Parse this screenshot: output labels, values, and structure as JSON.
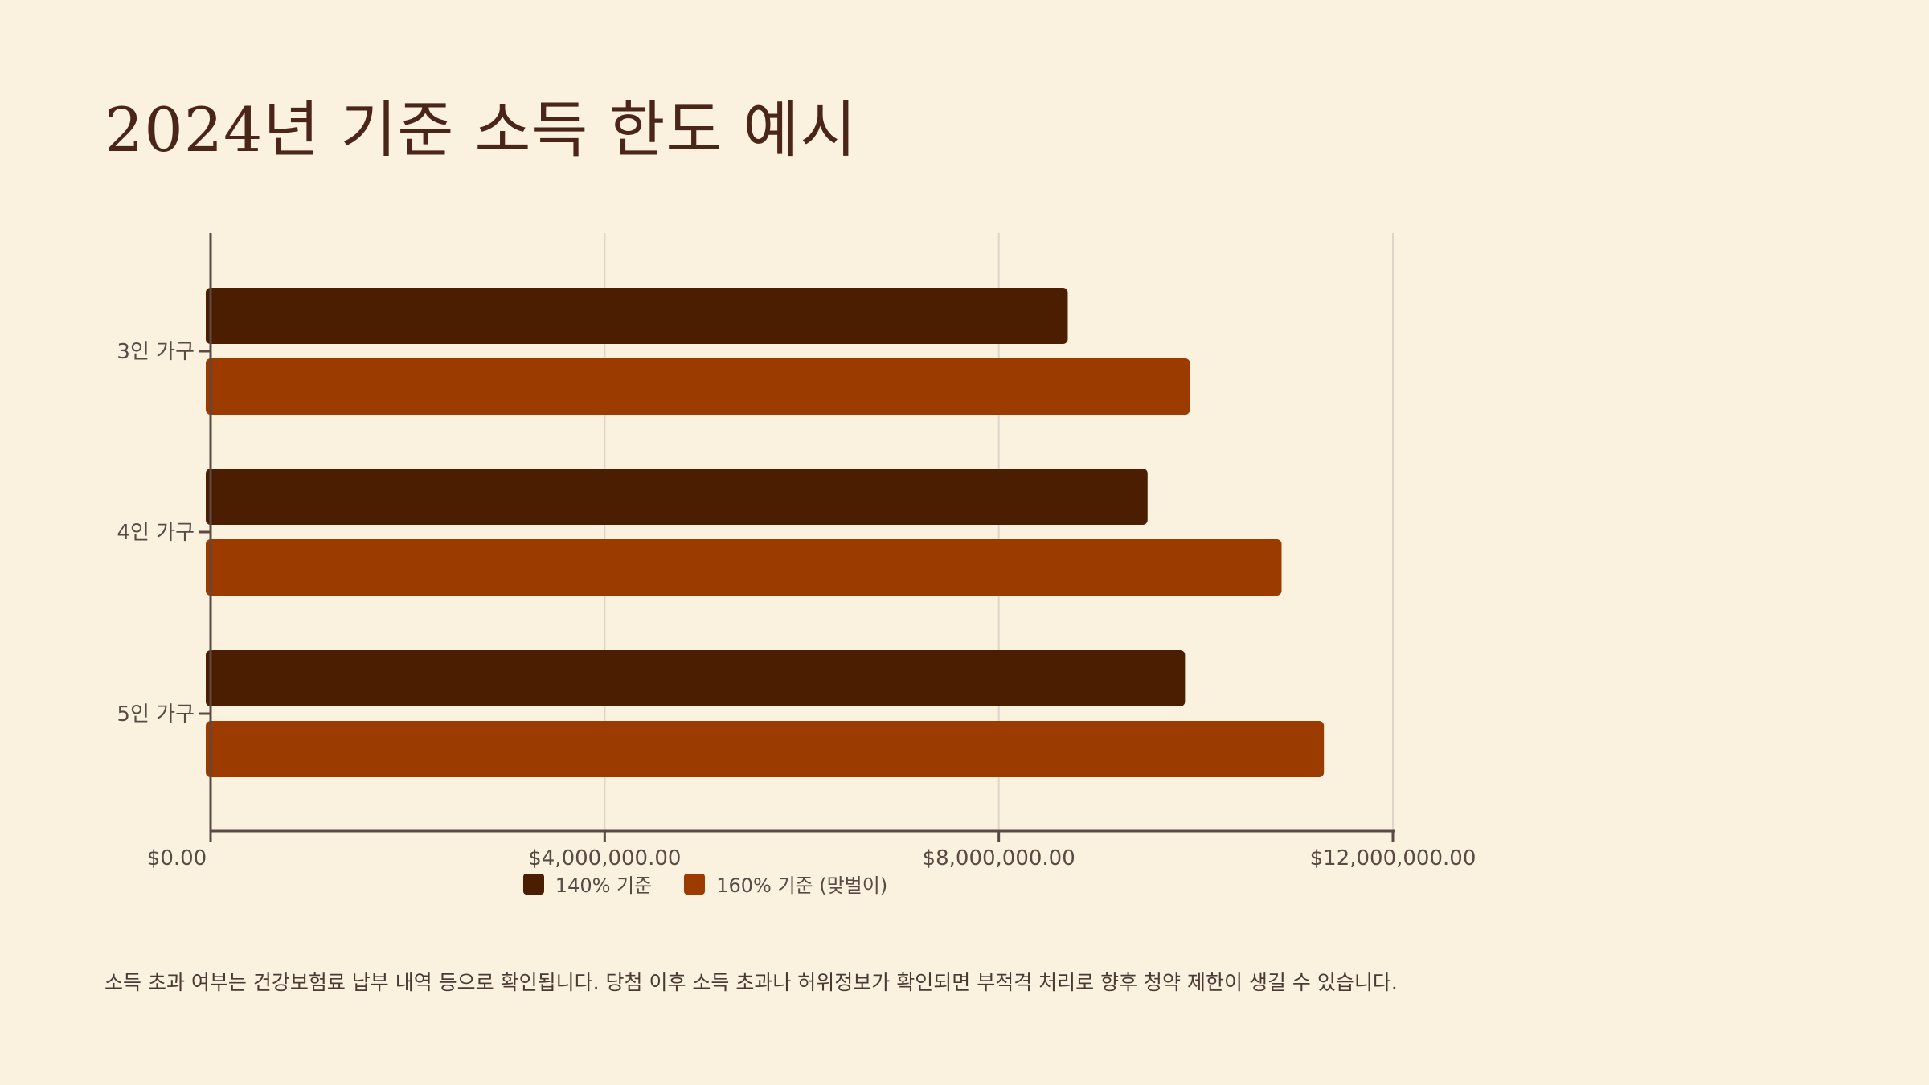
{
  "title": "2024년 기준 소득 한도 예시",
  "note": "소득 초과 여부는 건강보험료 납부 내역 등으로 확인됩니다. 당첨 이후 소득 초과나 허위정보가 확인되면 부적격 처리로 향후 청약 제한이 생길 수 있습니다.",
  "colors": {
    "background": "#FAF1DF",
    "series_140": "#4B1E02",
    "series_160": "#9C3B00",
    "axis": "#5A4A44",
    "grid": "#DDD5C8"
  },
  "chart_data": {
    "type": "bar",
    "orientation": "horizontal",
    "title": "2024년 기준 소득 한도 예시",
    "categories": [
      "3인 가구",
      "4인 가구",
      "5인 가구"
    ],
    "series": [
      {
        "name": "140% 기준",
        "values": [
          8700000,
          9510000,
          9890000
        ],
        "color": "#4B1E02"
      },
      {
        "name": "160% 기준 (맞벌이)",
        "values": [
          9940000,
          10870000,
          11300000
        ],
        "color": "#9C3B00"
      }
    ],
    "xlim": [
      0,
      12000000
    ],
    "xticks": [
      0,
      4000000,
      8000000,
      12000000
    ],
    "xtick_labels": [
      "$0.00",
      "$4,000,000.00",
      "$8,000,000.00",
      "$12,000,000.00"
    ],
    "grid": true,
    "legend": "bottom"
  }
}
